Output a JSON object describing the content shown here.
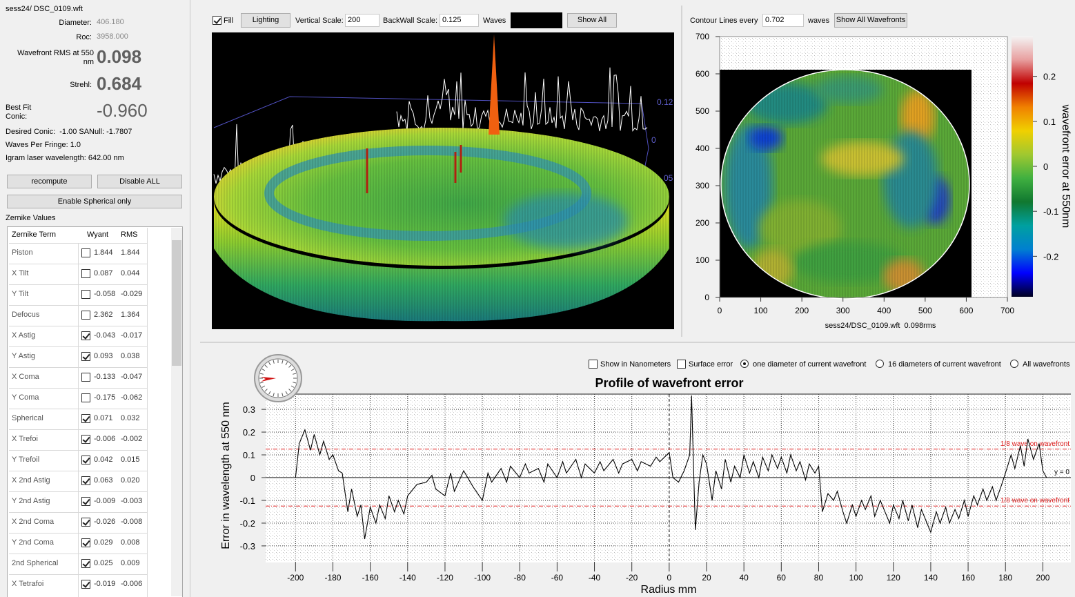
{
  "file_info": {
    "filename": "sess24/ DSC_0109.wft",
    "diameter_label": "Diameter:",
    "diameter": "406.180",
    "roc_label": "Roc:",
    "roc": "3958.000",
    "rms_label": "Wavefront RMS at 550 nm",
    "rms": "0.098",
    "strehl_label": "Strehl:",
    "strehl": "0.684",
    "conic_label": "Best Fit Conic:",
    "conic": "-0.960",
    "desired_conic": "Desired Conic:  -1.00 SANull: -1.7807",
    "waves_per_fringe": "Waves Per Fringe: 1.0",
    "laser_wavelength": "Igram laser wavelength: 642.00 nm"
  },
  "buttons": {
    "recompute": "recompute",
    "disable_all": "Disable ALL",
    "enable_spherical": "Enable Spherical only"
  },
  "zernike": {
    "title": "Zernike Values",
    "headers": [
      "Zernike Term",
      "Wyant",
      "RMS"
    ],
    "rows": [
      {
        "term": "Piston",
        "enabled": false,
        "wyant": "1.844",
        "rms": "1.844"
      },
      {
        "term": "X Tilt",
        "enabled": false,
        "wyant": "0.087",
        "rms": "0.044"
      },
      {
        "term": "Y Tilt",
        "enabled": false,
        "wyant": "-0.058",
        "rms": "-0.029"
      },
      {
        "term": "Defocus",
        "enabled": false,
        "wyant": "2.362",
        "rms": "1.364"
      },
      {
        "term": "X Astig",
        "enabled": true,
        "wyant": "-0.043",
        "rms": "-0.017"
      },
      {
        "term": "Y Astig",
        "enabled": true,
        "wyant": "0.093",
        "rms": "0.038"
      },
      {
        "term": "X Coma",
        "enabled": false,
        "wyant": "-0.133",
        "rms": "-0.047"
      },
      {
        "term": "Y Coma",
        "enabled": false,
        "wyant": "-0.175",
        "rms": "-0.062"
      },
      {
        "term": "Spherical",
        "enabled": true,
        "wyant": "0.071",
        "rms": "0.032"
      },
      {
        "term": "X Trefoi",
        "enabled": true,
        "wyant": "-0.006",
        "rms": "-0.002"
      },
      {
        "term": "Y Trefoil",
        "enabled": true,
        "wyant": "0.042",
        "rms": "0.015"
      },
      {
        "term": "X 2nd Astig",
        "enabled": true,
        "wyant": "0.063",
        "rms": "0.020"
      },
      {
        "term": "Y 2nd Astig",
        "enabled": true,
        "wyant": "-0.009",
        "rms": "-0.003"
      },
      {
        "term": "X 2nd Coma",
        "enabled": true,
        "wyant": "-0.026",
        "rms": "-0.008"
      },
      {
        "term": "Y 2nd Coma",
        "enabled": true,
        "wyant": "0.029",
        "rms": "0.008"
      },
      {
        "term": "2nd Spherical",
        "enabled": true,
        "wyant": "0.025",
        "rms": "0.009"
      },
      {
        "term": "X Tetrafoi",
        "enabled": true,
        "wyant": "-0.019",
        "rms": "-0.006"
      }
    ]
  },
  "view3d": {
    "fill_label": "Fill",
    "fill": true,
    "lighting": "Lighting",
    "vertical_scale_label": "Vertical Scale:",
    "vertical_scale": "200",
    "backwall_label": "BackWall Scale:",
    "backwall": "0.125",
    "waves_label": "Waves",
    "show_all": "Show All",
    "axis_labels": [
      "0.12",
      "0",
      "05"
    ]
  },
  "contour": {
    "contour_label": "Contour Lines every",
    "contour_step": "0.702",
    "waves_label": "waves",
    "show_all": "Show All Wavefronts",
    "xlim": [
      0,
      700
    ],
    "ylim": [
      0,
      700
    ],
    "xticks": [
      0,
      100,
      200,
      300,
      400,
      500,
      600,
      700
    ],
    "yticks": [
      0,
      100,
      200,
      300,
      400,
      500,
      600,
      700
    ],
    "caption": "sess24/DSC_0109.wft  0.098rms",
    "colorbar": {
      "label": "wavefront error at 550nm",
      "lim": [
        -0.29,
        0.29
      ],
      "ticks": [
        -0.2,
        -0.1,
        0,
        0.1,
        0.2
      ],
      "colors": [
        "#000020",
        "#0000ff",
        "#0080d0",
        "#00a0a0",
        "#107830",
        "#40b040",
        "#a0c830",
        "#f0d000",
        "#f08000",
        "#c00000",
        "#e8a0a0",
        "#f4f4f4"
      ]
    }
  },
  "profile": {
    "show_nm": "Show in Nanometers",
    "show_nm_checked": false,
    "surface_error": "Surface error",
    "surface_error_checked": false,
    "modes": [
      "one diameter of current wavefront",
      "16 diameters of current wavefront",
      "All wavefronts"
    ],
    "selected_mode": 0,
    "title": "Profile of wavefront error",
    "ylabel": "Error in wavelength at 550 nm",
    "xlabel": "Radius mm",
    "color": "#000000",
    "xlim": [
      -216,
      215
    ],
    "ylim": [
      -0.373,
      0.367
    ],
    "xticks": [
      -200,
      -180,
      -160,
      -140,
      -120,
      -100,
      -80,
      -60,
      -40,
      -20,
      0,
      20,
      40,
      60,
      80,
      100,
      120,
      140,
      160,
      180,
      200
    ],
    "yticks": [
      -0.3,
      -0.2,
      -0.1,
      0,
      0.1,
      0.2,
      0.3
    ],
    "ref_lines": [
      {
        "value": 0.125,
        "label": "1/8 wave on wavefront",
        "color": "#e02020"
      },
      {
        "value": -0.125,
        "label": "1/8 wave on wavefront",
        "color": "#e02020"
      },
      {
        "value": 0,
        "label": "y = 0",
        "color": "#000000"
      }
    ],
    "x": [
      -205,
      -200,
      -198,
      -195,
      -192,
      -190,
      -187,
      -185,
      -182,
      -180,
      -177,
      -175,
      -172,
      -170,
      -167,
      -165,
      -163,
      -160,
      -157,
      -155,
      -152,
      -150,
      -147,
      -145,
      -142,
      -140,
      -135,
      -130,
      -127,
      -125,
      -120,
      -117,
      -115,
      -110,
      -105,
      -100,
      -97,
      -95,
      -90,
      -87,
      -85,
      -80,
      -77,
      -75,
      -70,
      -67,
      -65,
      -60,
      -57,
      -55,
      -50,
      -47,
      -45,
      -40,
      -37,
      -35,
      -30,
      -27,
      -25,
      -20,
      -17,
      -15,
      -10,
      -7,
      -5,
      0,
      2,
      5,
      8,
      11,
      12,
      13,
      14,
      16,
      18,
      20,
      23,
      25,
      28,
      30,
      33,
      35,
      38,
      40,
      43,
      45,
      48,
      50,
      53,
      55,
      58,
      60,
      63,
      65,
      68,
      70,
      73,
      75,
      78,
      80,
      82,
      85,
      88,
      90,
      93,
      95,
      98,
      100,
      103,
      105,
      108,
      110,
      113,
      115,
      118,
      120,
      123,
      125,
      128,
      130,
      133,
      135,
      138,
      140,
      143,
      145,
      148,
      150,
      153,
      155,
      158,
      160,
      163,
      165,
      168,
      170,
      173,
      175,
      178,
      180,
      183,
      185,
      188,
      190,
      192,
      195,
      198,
      200,
      202,
      205
    ],
    "y": [
      0,
      0,
      0.15,
      0.21,
      0.12,
      0.19,
      0.1,
      0.16,
      0.08,
      0.1,
      0.03,
      0.02,
      -0.15,
      -0.05,
      -0.17,
      -0.12,
      -0.27,
      -0.13,
      -0.2,
      -0.12,
      -0.18,
      -0.08,
      -0.15,
      -0.1,
      -0.16,
      -0.08,
      -0.03,
      -0.02,
      0.01,
      -0.05,
      -0.08,
      0.02,
      -0.06,
      0.03,
      -0.04,
      -0.1,
      0.02,
      -0.02,
      0.04,
      -0.02,
      0.05,
      0,
      0.06,
      0.02,
      0.04,
      -0.02,
      0.06,
      0,
      0.07,
      0.02,
      0.08,
      0,
      0.06,
      0.02,
      0.07,
      0.03,
      0.08,
      0.02,
      0.06,
      0.08,
      0.03,
      0.07,
      0.05,
      0.09,
      0.07,
      0.11,
      0,
      -0.02,
      0.03,
      0.1,
      0.36,
      0.05,
      -0.23,
      -0.02,
      0.1,
      0.06,
      -0.1,
      0.03,
      -0.05,
      0.08,
      -0.02,
      0.05,
      0,
      0.1,
      0.02,
      0.07,
      0,
      0.09,
      0.03,
      0.1,
      0.04,
      0.09,
      0.02,
      0.1,
      0.03,
      0.07,
      -0.01,
      0.06,
      0.02,
      0.05,
      -0.15,
      -0.07,
      -0.1,
      -0.06,
      -0.15,
      -0.2,
      -0.12,
      -0.17,
      -0.1,
      -0.14,
      -0.08,
      -0.17,
      -0.1,
      -0.14,
      -0.2,
      -0.12,
      -0.18,
      -0.1,
      -0.19,
      -0.12,
      -0.22,
      -0.14,
      -0.2,
      -0.24,
      -0.15,
      -0.2,
      -0.13,
      -0.2,
      -0.14,
      -0.18,
      -0.1,
      -0.17,
      -0.08,
      -0.12,
      -0.05,
      -0.1,
      -0.04,
      -0.1,
      -0.03,
      0.02,
      0.1,
      0.04,
      0.14,
      0.05,
      0.17,
      0.08,
      0.15,
      0.03,
      0,
      0
    ]
  }
}
